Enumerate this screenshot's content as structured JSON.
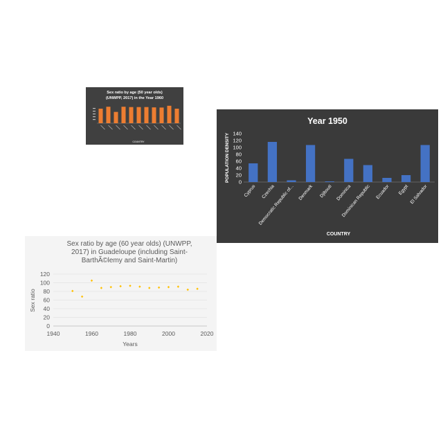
{
  "chart_data": [
    {
      "type": "bar",
      "title": "Sex ratio by age (50 year olds) (UNWPP, 2017) in the Year 1960",
      "title_lines": [
        "Sex ratio by age (50 year olds)",
        "(UNWPP, 2017) in the Year 1960"
      ],
      "xlabel": "COUNTRY",
      "ylabel": "",
      "categories": [
        "",
        "",
        "",
        "",
        "",
        "",
        "",
        "",
        "",
        "",
        ""
      ],
      "values": [
        90,
        102,
        70,
        102,
        100,
        100,
        100,
        98,
        97,
        108,
        90
      ],
      "ylim": [
        0,
        120
      ],
      "bar_color": "#ed7d31",
      "background": "#404040"
    },
    {
      "type": "bar",
      "title": "Year 1950",
      "xlabel": "COUNTRY",
      "ylabel": "POPULATION DENSITY",
      "categories": [
        "Cyprus",
        "Czechia",
        "Democratic Republic of...",
        "Denmark",
        "Djibouti",
        "Dominica",
        "Dominican Republic",
        "Ecuador",
        "Egypt",
        "El Salvador"
      ],
      "values": [
        54,
        116,
        5,
        107,
        2,
        67,
        49,
        12,
        20,
        107
      ],
      "ylim": [
        0,
        140
      ],
      "yticks": [
        0,
        20,
        40,
        60,
        80,
        100,
        120,
        140
      ],
      "bar_color": "#4472c4",
      "background": "#3a3a3a"
    },
    {
      "type": "scatter",
      "title": "Sex ratio by age (60 year olds) (UNWPP, 2017) in Guadeloupe (including Saint-BarthÃ©lemy and Saint-Martin)",
      "title_lines": [
        "Sex ratio by age (60 year olds) (UNWPP,",
        "2017) in Guadeloupe (including Saint-",
        "BarthÃ©lemy and Saint-Martin)"
      ],
      "xlabel": "Years",
      "ylabel": "Sex ratio",
      "x": [
        1950,
        1955,
        1960,
        1965,
        1970,
        1975,
        1980,
        1985,
        1990,
        1995,
        2000,
        2005,
        2010,
        2015
      ],
      "y": [
        81,
        68,
        105,
        88,
        90,
        92,
        93,
        91,
        88,
        89,
        90,
        91,
        84,
        86
      ],
      "xlim": [
        1940,
        2020
      ],
      "xticks": [
        1940,
        1960,
        1980,
        2000,
        2020
      ],
      "ylim": [
        0,
        120
      ],
      "yticks": [
        0,
        20,
        40,
        60,
        80,
        100,
        120
      ],
      "marker_color": "#ffc000",
      "background": "#f4f4f4"
    }
  ]
}
